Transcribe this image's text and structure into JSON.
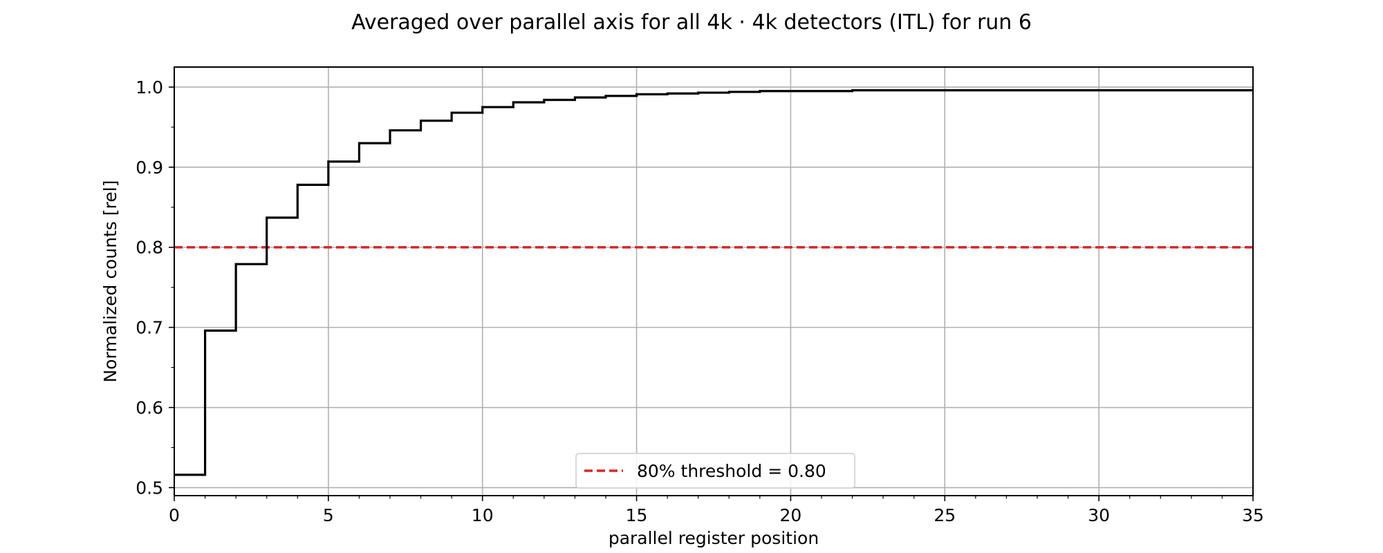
{
  "chart_data": {
    "type": "line",
    "style": "step",
    "title": "Averaged over parallel axis for all 4k · 4k detectors (ITL) for run 6",
    "xlabel": "parallel register position",
    "ylabel": "Normalized counts [rel]",
    "xlim": [
      0,
      35
    ],
    "ylim": [
      0.49,
      1.025
    ],
    "xticks": [
      0,
      5,
      10,
      15,
      20,
      25,
      30,
      35
    ],
    "yticks": [
      0.5,
      0.6,
      0.7,
      0.8,
      0.9,
      1.0
    ],
    "grid": true,
    "legend_position": "lower center",
    "series": [
      {
        "color": "#000000",
        "x": [
          0,
          1,
          2,
          3,
          4,
          5,
          6,
          7,
          8,
          9,
          10,
          11,
          12,
          13,
          14,
          15,
          16,
          17,
          18,
          19,
          20,
          21,
          22,
          23,
          24,
          25,
          26,
          27,
          28,
          29,
          30,
          31,
          32,
          33,
          34,
          35
        ],
        "y": [
          0.516,
          0.696,
          0.779,
          0.837,
          0.878,
          0.907,
          0.93,
          0.946,
          0.958,
          0.968,
          0.975,
          0.981,
          0.984,
          0.987,
          0.989,
          0.991,
          0.992,
          0.993,
          0.994,
          0.995,
          0.995,
          0.995,
          0.996,
          0.996,
          0.996,
          0.996,
          0.996,
          0.996,
          0.996,
          0.996,
          0.996,
          0.996,
          0.996,
          0.996,
          0.996,
          0.996
        ]
      },
      {
        "name": "80% threshold = 0.80",
        "color": "#d62728",
        "linestyle": "dashed",
        "y": 0.8
      }
    ]
  }
}
